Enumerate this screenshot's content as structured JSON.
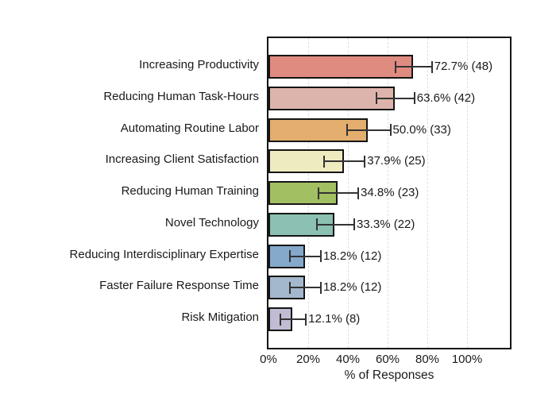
{
  "chart_data": {
    "type": "bar",
    "orientation": "horizontal",
    "title": "",
    "xlabel": "% of Responses",
    "ylabel": "",
    "categories": [
      "Increasing Productivity",
      "Reducing Human Task-Hours",
      "Automating Routine Labor",
      "Increasing Client Satisfaction",
      "Reducing Human Training",
      "Novel Technology",
      "Reducing Interdisciplinary Expertise",
      "Faster Failure Response Time",
      "Risk Mitigation"
    ],
    "values": [
      72.7,
      63.6,
      50.0,
      37.9,
      34.8,
      33.3,
      18.2,
      18.2,
      12.1
    ],
    "counts": [
      48,
      42,
      33,
      25,
      23,
      22,
      12,
      12,
      8
    ],
    "errors": [
      9.2,
      9.5,
      11.0,
      10.2,
      10.0,
      9.5,
      7.8,
      7.8,
      6.4
    ],
    "value_labels": [
      "72.7% (48)",
      "63.6% (42)",
      "50.0% (33)",
      "37.9% (25)",
      "34.8% (23)",
      "33.3% (22)",
      "18.2% (12)",
      "18.2% (12)",
      "12.1% (8)"
    ],
    "bar_colors": [
      "#e08b80",
      "#ddb4ab",
      "#e3ae6e",
      "#eeebc1",
      "#a2bf62",
      "#8bc0b2",
      "#84a9cb",
      "#a3b8cc",
      "#c2bbd4"
    ],
    "x_ticks": [
      "0%",
      "20%",
      "40%",
      "60%",
      "80%",
      "100%"
    ],
    "x_tick_values": [
      0,
      20,
      40,
      60,
      80,
      100
    ],
    "xlim": [
      0,
      121.6
    ],
    "grid": "vertical-dashed",
    "legend": "none"
  },
  "colors": {
    "background": "#ffffff",
    "axis_border": "#151515",
    "bar_border": "#151515",
    "error_bar": "#333333",
    "gridline": "#dedede",
    "text": "#1a1a1a"
  }
}
